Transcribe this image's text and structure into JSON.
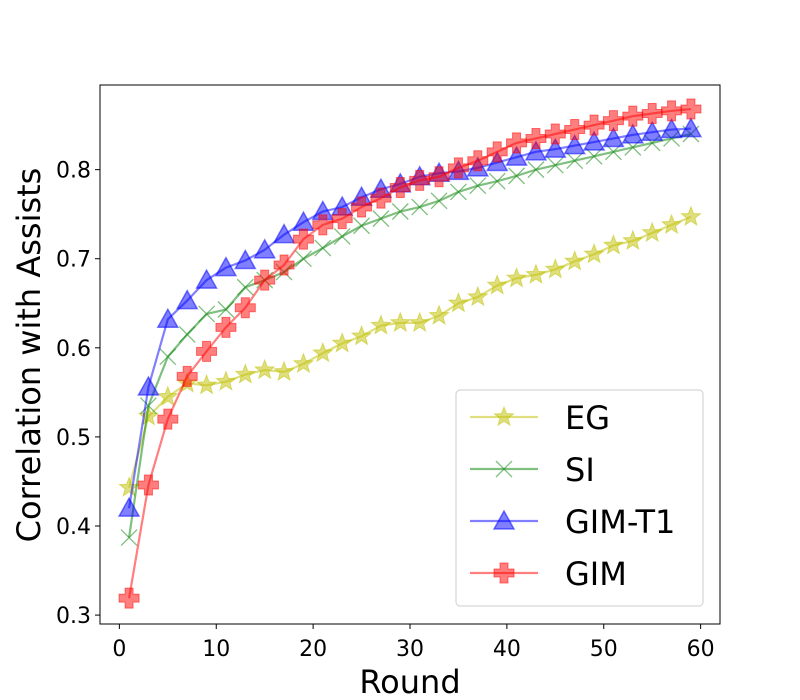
{
  "chart_data": {
    "type": "line",
    "title": "",
    "xlabel": "Round",
    "ylabel": "Correlation with Assists",
    "xlim": [
      -2,
      62
    ],
    "ylim": [
      0.29,
      0.895
    ],
    "xticks": [
      0,
      10,
      20,
      30,
      40,
      50,
      60
    ],
    "yticks": [
      0.3,
      0.4,
      0.5,
      0.6,
      0.7,
      0.8
    ],
    "ytick_labels": [
      "0.3",
      "0.4",
      "0.5",
      "0.6",
      "0.7",
      "0.8"
    ],
    "grid": false,
    "legend_position": "lower-right",
    "x": [
      1,
      3,
      5,
      7,
      9,
      11,
      13,
      15,
      17,
      19,
      21,
      23,
      25,
      27,
      29,
      31,
      33,
      35,
      37,
      39,
      41,
      43,
      45,
      47,
      49,
      51,
      53,
      55,
      57,
      59
    ],
    "series": [
      {
        "name": "EG",
        "color": "#bfbf00",
        "marker": "star",
        "values": [
          0.443,
          0.523,
          0.545,
          0.56,
          0.558,
          0.562,
          0.57,
          0.575,
          0.573,
          0.582,
          0.594,
          0.605,
          0.613,
          0.625,
          0.628,
          0.628,
          0.636,
          0.65,
          0.657,
          0.67,
          0.678,
          0.682,
          0.688,
          0.697,
          0.705,
          0.715,
          0.72,
          0.729,
          0.738,
          0.747
        ]
      },
      {
        "name": "SI",
        "color": "#008000",
        "marker": "x",
        "values": [
          0.387,
          0.535,
          0.59,
          0.615,
          0.638,
          0.643,
          0.668,
          0.676,
          0.685,
          0.7,
          0.712,
          0.725,
          0.737,
          0.745,
          0.753,
          0.758,
          0.765,
          0.775,
          0.782,
          0.787,
          0.793,
          0.8,
          0.805,
          0.81,
          0.815,
          0.82,
          0.825,
          0.83,
          0.835,
          0.84
        ]
      },
      {
        "name": "GIM-T1",
        "color": "#0000ff",
        "marker": "triangle",
        "values": [
          0.42,
          0.556,
          0.632,
          0.653,
          0.676,
          0.69,
          0.698,
          0.71,
          0.727,
          0.741,
          0.753,
          0.758,
          0.769,
          0.778,
          0.784,
          0.792,
          0.796,
          0.798,
          0.802,
          0.808,
          0.814,
          0.82,
          0.823,
          0.827,
          0.831,
          0.835,
          0.839,
          0.842,
          0.845,
          0.846
        ]
      },
      {
        "name": "GIM",
        "color": "#ff0000",
        "marker": "plus",
        "values": [
          0.319,
          0.446,
          0.52,
          0.568,
          0.596,
          0.623,
          0.645,
          0.676,
          0.693,
          0.722,
          0.738,
          0.745,
          0.758,
          0.768,
          0.78,
          0.788,
          0.792,
          0.802,
          0.81,
          0.82,
          0.83,
          0.835,
          0.84,
          0.845,
          0.85,
          0.855,
          0.86,
          0.863,
          0.866,
          0.868
        ]
      }
    ]
  }
}
